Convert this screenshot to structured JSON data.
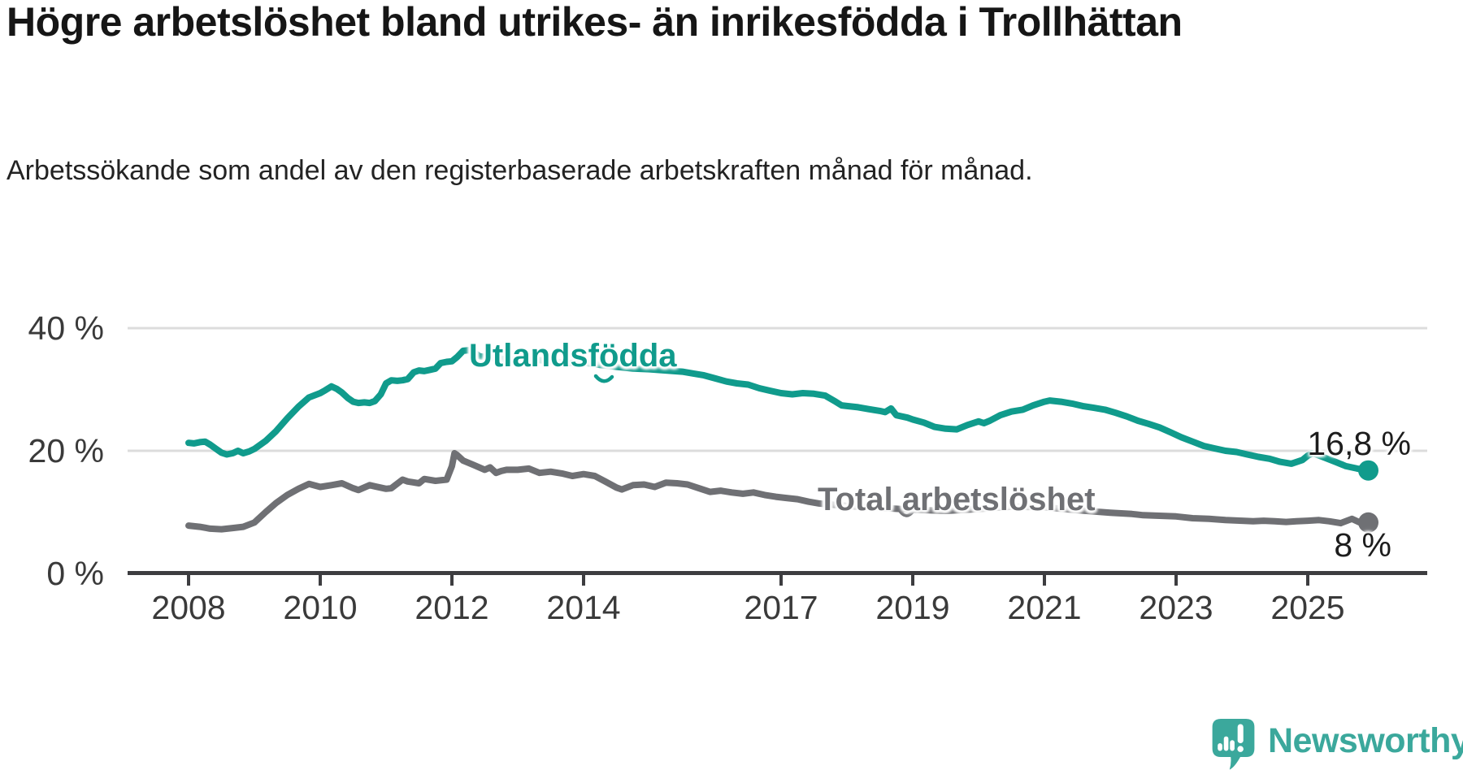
{
  "header": {
    "title": "Högre arbetslöshet bland utrikes- än inrikesfödda i Trollhättan",
    "subtitle": "Arbetssökande som andel av den registerbaserade arbetskraften månad för månad."
  },
  "chart_data": {
    "type": "line",
    "title": "Högre arbetslöshet bland utrikes- än inrikesfödda i Trollhättan",
    "subtitle": "Arbetssökande som andel av den registerbaserade arbetskraften månad för månad.",
    "grid": "horizontal-only",
    "legend_position": "inline-labels-on-lines",
    "x_axis": {
      "tick_labels": [
        "2008",
        "2010",
        "2012",
        "2014",
        "2017",
        "2019",
        "2021",
        "2023",
        "2025"
      ],
      "tick_values": [
        2008,
        2010,
        2012,
        2014,
        2017,
        2019,
        2021,
        2023,
        2025
      ],
      "range_years": [
        2007.1,
        2026.8
      ]
    },
    "y_axis": {
      "unit": "%",
      "tick_labels": [
        "0 %",
        "20 %",
        "40 %"
      ],
      "tick_values": [
        0,
        20,
        40
      ],
      "gridline_values": [
        20,
        40
      ],
      "range": [
        0,
        45
      ]
    },
    "series": [
      {
        "name": "Utlandsfödda",
        "color": "#109b8c",
        "end_label": "16,8 %",
        "end_value": 16.8,
        "points": [
          [
            2008.0,
            21.3
          ],
          [
            2008.08,
            21.2
          ],
          [
            2008.17,
            21.4
          ],
          [
            2008.25,
            21.5
          ],
          [
            2008.33,
            21.0
          ],
          [
            2008.42,
            20.3
          ],
          [
            2008.5,
            19.7
          ],
          [
            2008.58,
            19.4
          ],
          [
            2008.67,
            19.6
          ],
          [
            2008.75,
            20.0
          ],
          [
            2008.83,
            19.6
          ],
          [
            2008.92,
            19.9
          ],
          [
            2009.0,
            20.3
          ],
          [
            2009.17,
            21.6
          ],
          [
            2009.33,
            23.2
          ],
          [
            2009.5,
            25.3
          ],
          [
            2009.67,
            27.2
          ],
          [
            2009.83,
            28.7
          ],
          [
            2010.0,
            29.4
          ],
          [
            2010.08,
            29.9
          ],
          [
            2010.17,
            30.5
          ],
          [
            2010.25,
            30.1
          ],
          [
            2010.33,
            29.5
          ],
          [
            2010.42,
            28.6
          ],
          [
            2010.5,
            28.0
          ],
          [
            2010.58,
            27.8
          ],
          [
            2010.67,
            27.9
          ],
          [
            2010.75,
            27.8
          ],
          [
            2010.83,
            28.1
          ],
          [
            2010.92,
            29.2
          ],
          [
            2011.0,
            31.0
          ],
          [
            2011.08,
            31.5
          ],
          [
            2011.17,
            31.4
          ],
          [
            2011.25,
            31.5
          ],
          [
            2011.33,
            31.7
          ],
          [
            2011.42,
            32.8
          ],
          [
            2011.5,
            33.1
          ],
          [
            2011.58,
            33.0
          ],
          [
            2011.67,
            33.2
          ],
          [
            2011.75,
            33.4
          ],
          [
            2011.83,
            34.3
          ],
          [
            2011.92,
            34.5
          ],
          [
            2012.0,
            34.6
          ],
          [
            2012.08,
            35.3
          ],
          [
            2012.17,
            36.3
          ],
          [
            2012.25,
            36.4
          ],
          [
            2012.33,
            36.1
          ],
          [
            2012.42,
            35.4
          ],
          [
            2012.5,
            35.3
          ],
          [
            2012.67,
            35.1
          ],
          [
            2012.83,
            34.9
          ],
          [
            2013.0,
            34.8
          ],
          [
            2013.25,
            34.9
          ],
          [
            2013.5,
            34.6
          ],
          [
            2013.75,
            34.3
          ],
          [
            2014.0,
            34.4
          ],
          [
            2014.25,
            34.0
          ],
          [
            2014.5,
            33.7
          ],
          [
            2014.75,
            33.4
          ],
          [
            2015.0,
            33.3
          ],
          [
            2015.25,
            33.1
          ],
          [
            2015.5,
            32.9
          ],
          [
            2015.67,
            32.6
          ],
          [
            2015.83,
            32.3
          ],
          [
            2016.0,
            31.8
          ],
          [
            2016.17,
            31.3
          ],
          [
            2016.33,
            31.0
          ],
          [
            2016.5,
            30.8
          ],
          [
            2016.67,
            30.2
          ],
          [
            2016.83,
            29.8
          ],
          [
            2017.0,
            29.4
          ],
          [
            2017.17,
            29.2
          ],
          [
            2017.33,
            29.4
          ],
          [
            2017.5,
            29.3
          ],
          [
            2017.67,
            29.0
          ],
          [
            2017.83,
            28.0
          ],
          [
            2017.92,
            27.4
          ],
          [
            2018.0,
            27.3
          ],
          [
            2018.17,
            27.1
          ],
          [
            2018.33,
            26.8
          ],
          [
            2018.5,
            26.5
          ],
          [
            2018.58,
            26.3
          ],
          [
            2018.67,
            26.9
          ],
          [
            2018.75,
            25.8
          ],
          [
            2018.92,
            25.4
          ],
          [
            2019.0,
            25.1
          ],
          [
            2019.17,
            24.6
          ],
          [
            2019.33,
            23.9
          ],
          [
            2019.5,
            23.6
          ],
          [
            2019.67,
            23.5
          ],
          [
            2019.83,
            24.2
          ],
          [
            2020.0,
            24.8
          ],
          [
            2020.08,
            24.5
          ],
          [
            2020.17,
            24.9
          ],
          [
            2020.33,
            25.8
          ],
          [
            2020.5,
            26.4
          ],
          [
            2020.67,
            26.7
          ],
          [
            2020.83,
            27.4
          ],
          [
            2021.0,
            28.0
          ],
          [
            2021.08,
            28.2
          ],
          [
            2021.25,
            28.0
          ],
          [
            2021.42,
            27.7
          ],
          [
            2021.58,
            27.3
          ],
          [
            2021.75,
            27.0
          ],
          [
            2021.92,
            26.7
          ],
          [
            2022.08,
            26.2
          ],
          [
            2022.25,
            25.6
          ],
          [
            2022.42,
            24.9
          ],
          [
            2022.58,
            24.4
          ],
          [
            2022.75,
            23.8
          ],
          [
            2022.92,
            23.0
          ],
          [
            2023.08,
            22.2
          ],
          [
            2023.25,
            21.5
          ],
          [
            2023.42,
            20.8
          ],
          [
            2023.58,
            20.4
          ],
          [
            2023.75,
            20.0
          ],
          [
            2023.92,
            19.8
          ],
          [
            2024.08,
            19.4
          ],
          [
            2024.25,
            19.0
          ],
          [
            2024.42,
            18.7
          ],
          [
            2024.58,
            18.2
          ],
          [
            2024.75,
            17.9
          ],
          [
            2024.92,
            18.5
          ],
          [
            2025.0,
            19.2
          ],
          [
            2025.08,
            19.6
          ],
          [
            2025.25,
            18.9
          ],
          [
            2025.42,
            18.2
          ],
          [
            2025.58,
            17.5
          ],
          [
            2025.75,
            17.1
          ],
          [
            2025.92,
            16.8
          ]
        ]
      },
      {
        "name": "Total arbetslöshet",
        "color": "#6f7074",
        "end_label": "8 %",
        "end_value": 8.3,
        "points": [
          [
            2008.0,
            7.8
          ],
          [
            2008.17,
            7.6
          ],
          [
            2008.33,
            7.3
          ],
          [
            2008.5,
            7.2
          ],
          [
            2008.67,
            7.4
          ],
          [
            2008.83,
            7.6
          ],
          [
            2009.0,
            8.3
          ],
          [
            2009.17,
            10.0
          ],
          [
            2009.33,
            11.5
          ],
          [
            2009.5,
            12.8
          ],
          [
            2009.67,
            13.8
          ],
          [
            2009.83,
            14.6
          ],
          [
            2010.0,
            14.1
          ],
          [
            2010.17,
            14.4
          ],
          [
            2010.33,
            14.7
          ],
          [
            2010.5,
            13.9
          ],
          [
            2010.58,
            13.6
          ],
          [
            2010.75,
            14.4
          ],
          [
            2010.83,
            14.2
          ],
          [
            2011.0,
            13.8
          ],
          [
            2011.08,
            13.9
          ],
          [
            2011.25,
            15.3
          ],
          [
            2011.33,
            15.0
          ],
          [
            2011.5,
            14.7
          ],
          [
            2011.58,
            15.4
          ],
          [
            2011.75,
            15.1
          ],
          [
            2011.92,
            15.3
          ],
          [
            2012.0,
            17.5
          ],
          [
            2012.04,
            19.6
          ],
          [
            2012.08,
            19.3
          ],
          [
            2012.17,
            18.4
          ],
          [
            2012.33,
            17.7
          ],
          [
            2012.5,
            16.9
          ],
          [
            2012.58,
            17.3
          ],
          [
            2012.67,
            16.4
          ],
          [
            2012.75,
            16.7
          ],
          [
            2012.83,
            16.9
          ],
          [
            2013.0,
            16.9
          ],
          [
            2013.17,
            17.1
          ],
          [
            2013.33,
            16.4
          ],
          [
            2013.5,
            16.6
          ],
          [
            2013.67,
            16.3
          ],
          [
            2013.83,
            15.9
          ],
          [
            2014.0,
            16.2
          ],
          [
            2014.17,
            15.9
          ],
          [
            2014.33,
            15.0
          ],
          [
            2014.5,
            14.0
          ],
          [
            2014.58,
            13.7
          ],
          [
            2014.75,
            14.4
          ],
          [
            2014.92,
            14.5
          ],
          [
            2015.08,
            14.1
          ],
          [
            2015.25,
            14.8
          ],
          [
            2015.42,
            14.7
          ],
          [
            2015.58,
            14.5
          ],
          [
            2015.75,
            13.9
          ],
          [
            2015.92,
            13.3
          ],
          [
            2016.08,
            13.5
          ],
          [
            2016.25,
            13.2
          ],
          [
            2016.42,
            13.0
          ],
          [
            2016.58,
            13.2
          ],
          [
            2016.75,
            12.8
          ],
          [
            2016.92,
            12.5
          ],
          [
            2017.08,
            12.3
          ],
          [
            2017.25,
            12.1
          ],
          [
            2017.42,
            11.7
          ],
          [
            2017.58,
            11.4
          ],
          [
            2018.0,
            11.0
          ],
          [
            2018.5,
            10.7
          ],
          [
            2019.0,
            10.4
          ],
          [
            2019.5,
            10.2
          ],
          [
            2020.0,
            10.5
          ],
          [
            2020.5,
            10.9
          ],
          [
            2021.0,
            10.8
          ],
          [
            2021.5,
            10.3
          ],
          [
            2022.0,
            9.9
          ],
          [
            2022.33,
            9.7
          ],
          [
            2022.5,
            9.5
          ],
          [
            2022.75,
            9.4
          ],
          [
            2023.0,
            9.3
          ],
          [
            2023.25,
            9.0
          ],
          [
            2023.5,
            8.9
          ],
          [
            2023.75,
            8.7
          ],
          [
            2024.0,
            8.6
          ],
          [
            2024.17,
            8.5
          ],
          [
            2024.33,
            8.6
          ],
          [
            2024.5,
            8.5
          ],
          [
            2024.67,
            8.4
          ],
          [
            2024.83,
            8.5
          ],
          [
            2025.0,
            8.6
          ],
          [
            2025.17,
            8.7
          ],
          [
            2025.33,
            8.5
          ],
          [
            2025.5,
            8.2
          ],
          [
            2025.67,
            8.9
          ],
          [
            2025.83,
            8.1
          ],
          [
            2025.92,
            8.3
          ]
        ]
      }
    ]
  },
  "branding": {
    "logo_text": "Newsworthy",
    "logo_color": "#3ba89c"
  }
}
